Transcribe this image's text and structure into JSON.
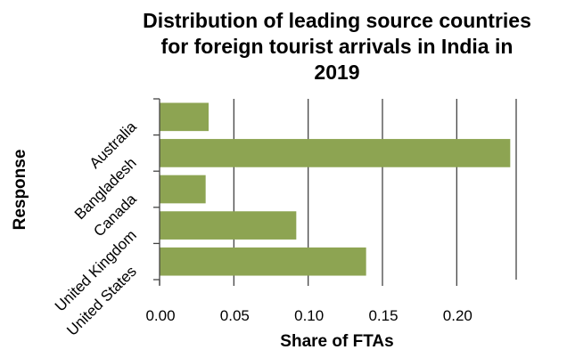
{
  "chart_data": {
    "type": "bar",
    "orientation": "horizontal",
    "title_lines": [
      "Distribution of leading source countries",
      "for foreign tourist arrivals in India in",
      "2019"
    ],
    "xlabel": "Share of FTAs",
    "ylabel": "Response",
    "categories": [
      "Australia",
      "Bangladesh",
      "Canada",
      "United Kingdom",
      "United States"
    ],
    "values": [
      0.033,
      0.236,
      0.031,
      0.092,
      0.139
    ],
    "xlim": [
      0,
      0.24
    ],
    "xticks": [
      "0.00",
      "0.05",
      "0.10",
      "0.15",
      "0.20"
    ],
    "xtick_values": [
      0,
      0.05,
      0.1,
      0.15,
      0.2
    ],
    "grid": "vertical",
    "bar_color": "#8da452",
    "grid_color": "#444444"
  }
}
